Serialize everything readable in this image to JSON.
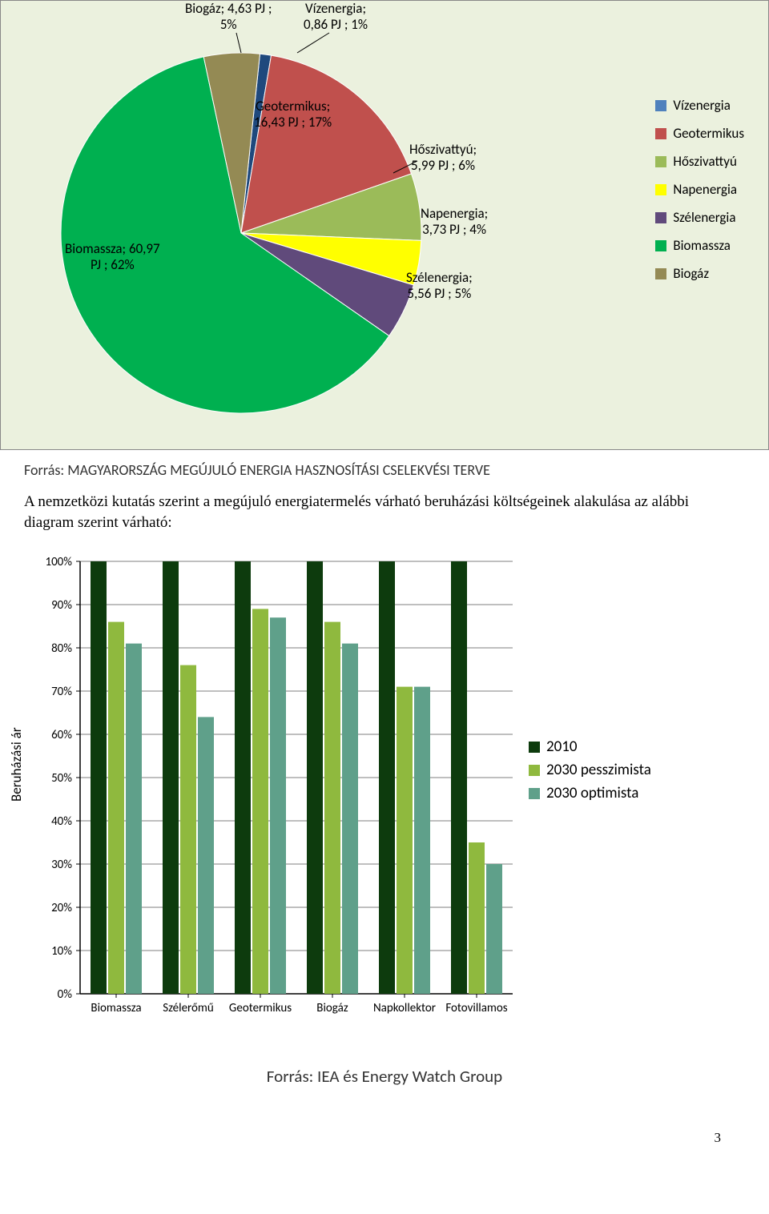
{
  "pie": {
    "background_color": "#ebf1de",
    "slices": [
      {
        "name": "Vízenergia",
        "value": 0.86,
        "pct": 1,
        "color": "#1f497d",
        "label": "Vízenergia;\n0,86 PJ ; 1%"
      },
      {
        "name": "Geotermikus",
        "value": 16.43,
        "pct": 17,
        "color": "#c0504d",
        "label": "Geotermikus;\n16,43 PJ ; 17%"
      },
      {
        "name": "Hőszivattyú",
        "value": 5.99,
        "pct": 6,
        "color": "#9bbb59",
        "label": "Hőszivattyú;\n5,99 PJ ; 6%"
      },
      {
        "name": "Napenergia",
        "value": 3.73,
        "pct": 4,
        "color": "#ffff00",
        "label": "Napenergia;\n3,73 PJ ; 4%"
      },
      {
        "name": "Szélenergia",
        "value": 5.56,
        "pct": 5,
        "color": "#604a7b",
        "label": "Szélenergia;\n5,56 PJ ; 5%"
      },
      {
        "name": "Biomassza",
        "value": 60.97,
        "pct": 62,
        "color": "#00b050",
        "label": "Biomassza; 60,97\nPJ ; 62%"
      },
      {
        "name": "Biogáz",
        "value": 4.63,
        "pct": 5,
        "color": "#948a54",
        "label": "Biogáz; 4,63 PJ ;\n5%"
      }
    ],
    "legend_items": [
      {
        "name": "Vízenergia",
        "color": "#4f81bd"
      },
      {
        "name": "Geotermikus",
        "color": "#c0504d"
      },
      {
        "name": "Hőszivattyú",
        "color": "#9bbb59"
      },
      {
        "name": "Napenergia",
        "color": "#ffff00"
      },
      {
        "name": "Szélenergia",
        "color": "#604a7b"
      },
      {
        "name": "Biomassza",
        "color": "#00b050"
      },
      {
        "name": "Biogáz",
        "color": "#948a54"
      }
    ],
    "label_biogaz_l1": "Biogáz; 4,63 PJ ;",
    "label_biogaz_l2": "5%",
    "label_viz_l1": "Vízenergia;",
    "label_viz_l2": "0,86 PJ ; 1%",
    "label_geo_l1": "Geotermikus;",
    "label_geo_l2": "16,43 PJ ; 17%",
    "label_hos_l1": "Hőszivattyú;",
    "label_hos_l2": "5,99 PJ ; 6%",
    "label_nap_l1": "Napenergia;",
    "label_nap_l2": "3,73 PJ ; 4%",
    "label_szel_l1": "Szélenergia;",
    "label_szel_l2": "5,56 PJ ; 5%",
    "label_bio_l1": "Biomassza; 60,97",
    "label_bio_l2": "PJ ; 62%"
  },
  "source1": "Forrás: MAGYARORSZÁG MEGÚJULÓ ENERGIA HASZNOSÍTÁSI CSELEKVÉSI TERVE",
  "paragraph": "A nemzetközi kutatás szerint a megújuló energiatermelés várható beruházási költségeinek alakulása az alábbi diagram szerint várható:",
  "bar": {
    "background_color": "#ffffff",
    "y_title": "Beruházási ár",
    "ylim": [
      0,
      100
    ],
    "ytick_step": 10,
    "yticks": [
      "0%",
      "10%",
      "20%",
      "30%",
      "40%",
      "50%",
      "60%",
      "70%",
      "80%",
      "90%",
      "100%"
    ],
    "categories": [
      "Biomassza",
      "Szélerőmű",
      "Geotermikus",
      "Biogáz",
      "Napkollektor",
      "Fotovillamos"
    ],
    "series": [
      {
        "name": "2010",
        "color": "#0d3b0d",
        "values": [
          100,
          100,
          100,
          100,
          100,
          100
        ]
      },
      {
        "name": "2030 pesszimista",
        "color": "#8fb93e",
        "values": [
          86,
          76,
          89,
          86,
          71,
          35
        ]
      },
      {
        "name": "2030 optimista",
        "color": "#5fa08a",
        "values": [
          81,
          64,
          87,
          81,
          71,
          30
        ]
      }
    ],
    "grid_color": "#000000",
    "label_fontsize": 15
  },
  "source2": "Forrás: IEA és Energy Watch Group",
  "pagenum": "3"
}
